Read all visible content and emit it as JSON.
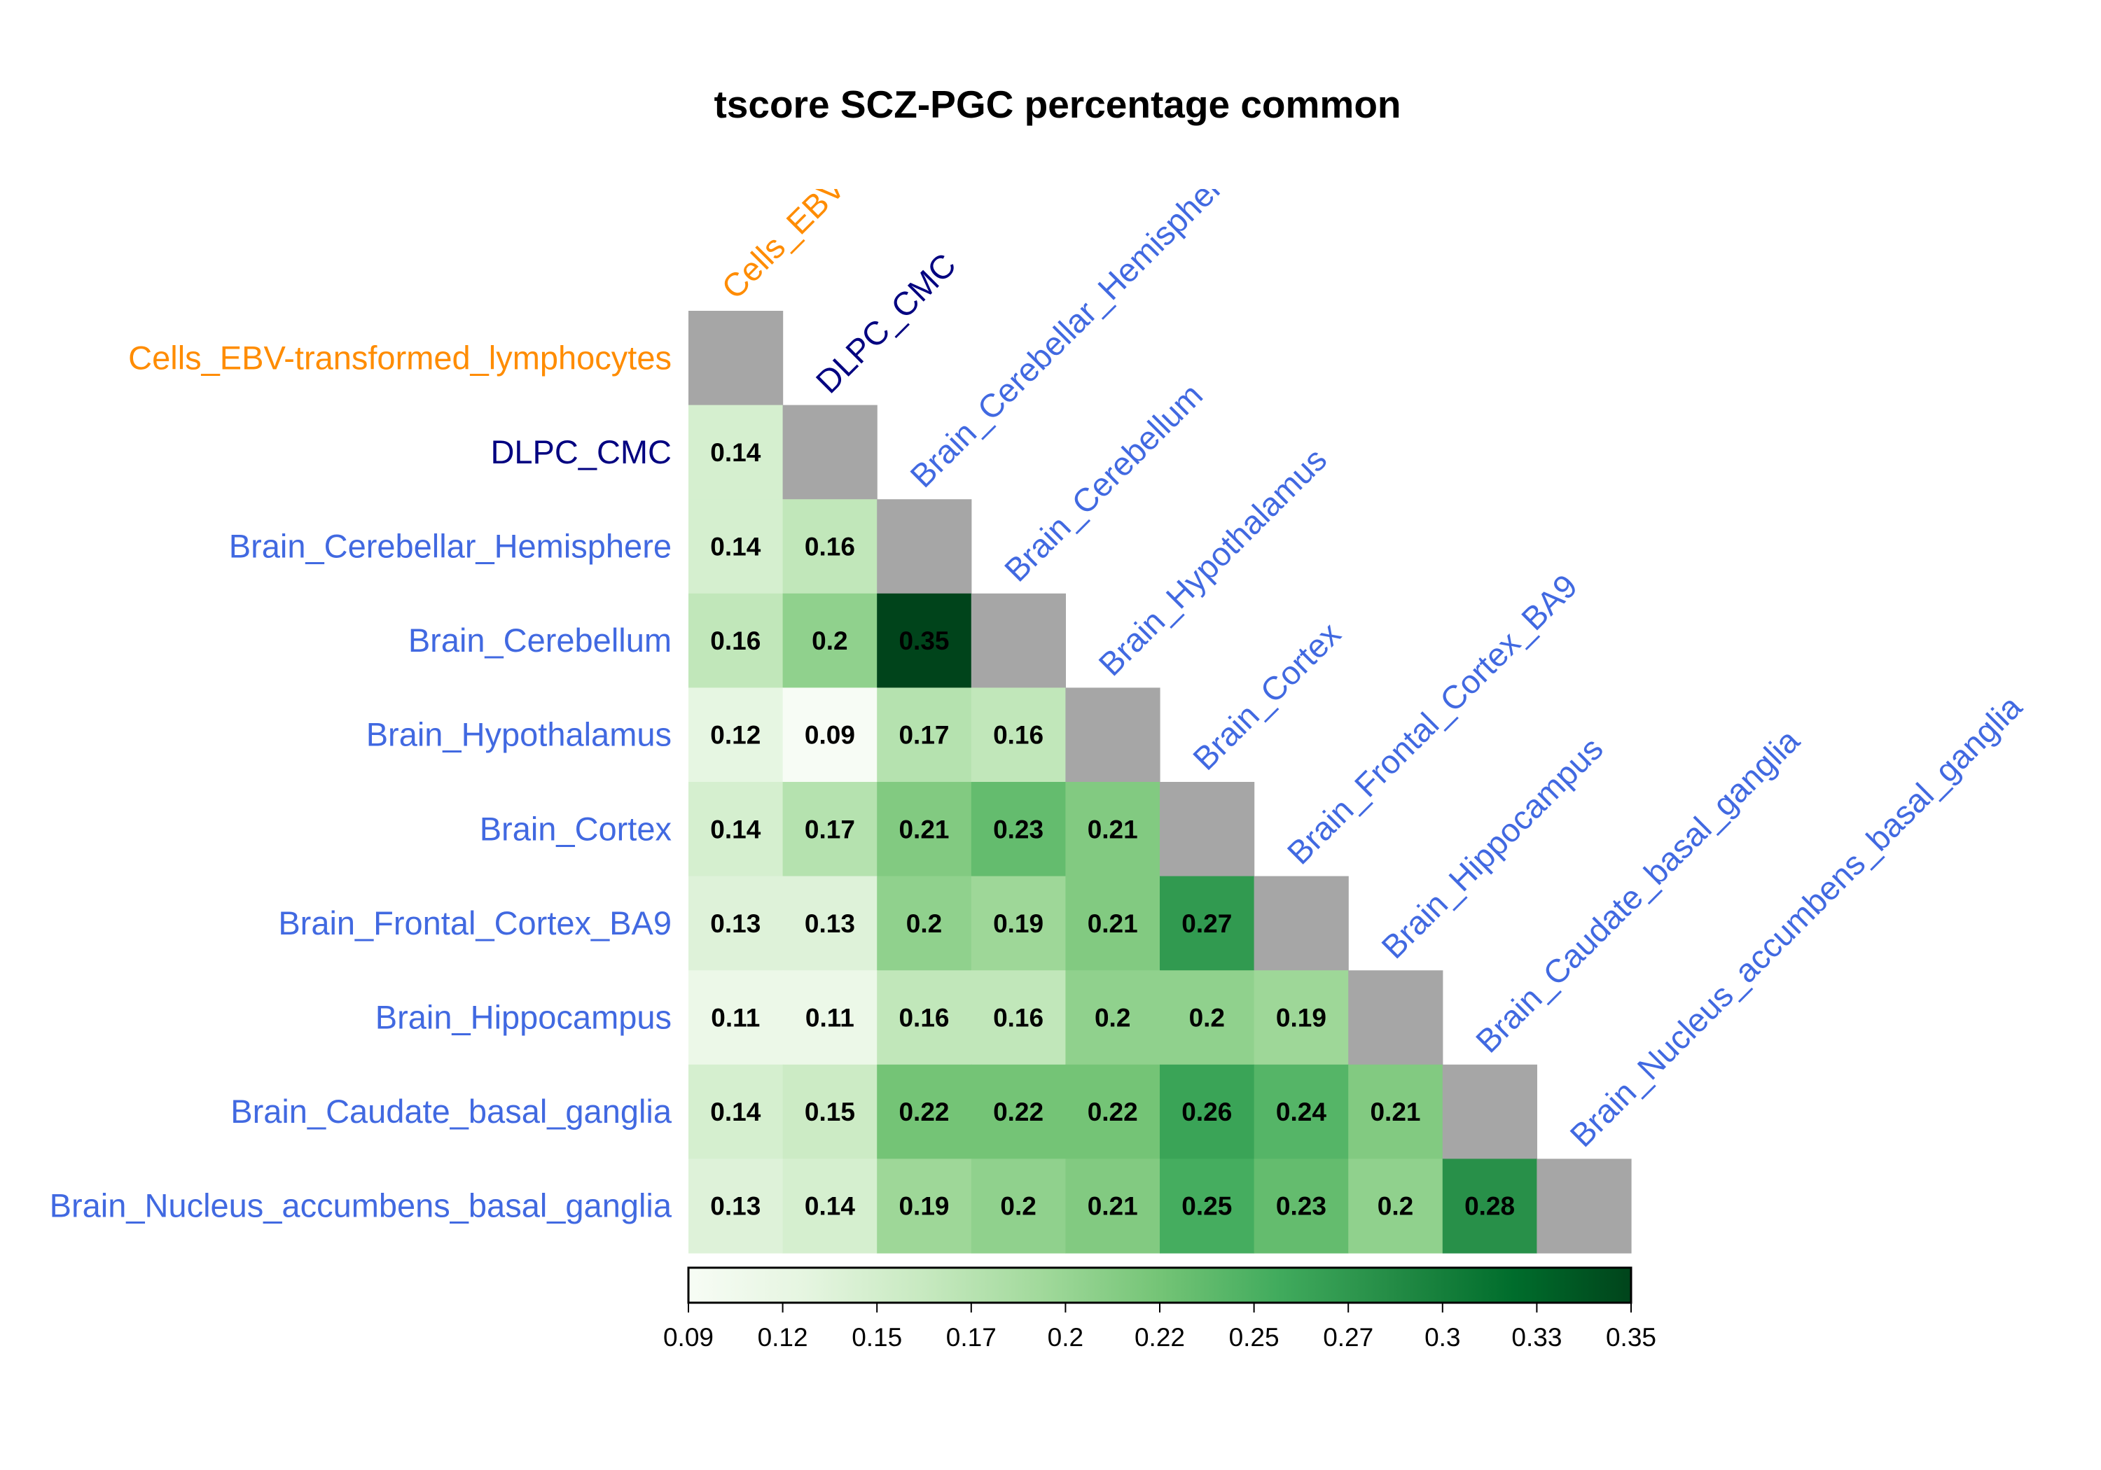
{
  "chart_data": {
    "type": "heatmap",
    "title": "tscore SCZ-PGC percentage common",
    "labels": [
      "Cells_EBV-transformed_lymphocytes",
      "DLPC_CMC",
      "Brain_Cerebellar_Hemisphere",
      "Brain_Cerebellum",
      "Brain_Hypothalamus",
      "Brain_Cortex",
      "Brain_Frontal_Cortex_BA9",
      "Brain_Hippocampus",
      "Brain_Caudate_basal_ganglia",
      "Brain_Nucleus_accumbens_basal_ganglia"
    ],
    "label_colors": [
      "#FF8C00",
      "#000080",
      "#4169E1",
      "#4169E1",
      "#4169E1",
      "#4169E1",
      "#4169E1",
      "#4169E1",
      "#4169E1",
      "#4169E1"
    ],
    "values": [
      [],
      [
        0.14
      ],
      [
        0.14,
        0.16
      ],
      [
        0.16,
        0.2,
        0.35
      ],
      [
        0.12,
        0.09,
        0.17,
        0.16
      ],
      [
        0.14,
        0.17,
        0.21,
        0.23,
        0.21
      ],
      [
        0.13,
        0.13,
        0.2,
        0.19,
        0.21,
        0.27
      ],
      [
        0.11,
        0.11,
        0.16,
        0.16,
        0.2,
        0.2,
        0.19
      ],
      [
        0.14,
        0.15,
        0.22,
        0.22,
        0.22,
        0.26,
        0.24,
        0.21
      ],
      [
        0.13,
        0.14,
        0.19,
        0.2,
        0.21,
        0.25,
        0.23,
        0.2,
        0.28
      ]
    ],
    "diagonal_color": "#A6A6A6",
    "color_scale": {
      "range": [
        0.09,
        0.35
      ],
      "colors": [
        "#F7FCF5",
        "#E5F5E0",
        "#C7E9C0",
        "#A1D99B",
        "#74C476",
        "#41AB5D",
        "#238B45",
        "#006D2C",
        "#00441B"
      ],
      "ticks": [
        "0.09",
        "0.12",
        "0.15",
        "0.17",
        "0.2",
        "0.22",
        "0.25",
        "0.27",
        "0.3",
        "0.33",
        "0.35"
      ]
    },
    "legend_placement": "bottom"
  }
}
